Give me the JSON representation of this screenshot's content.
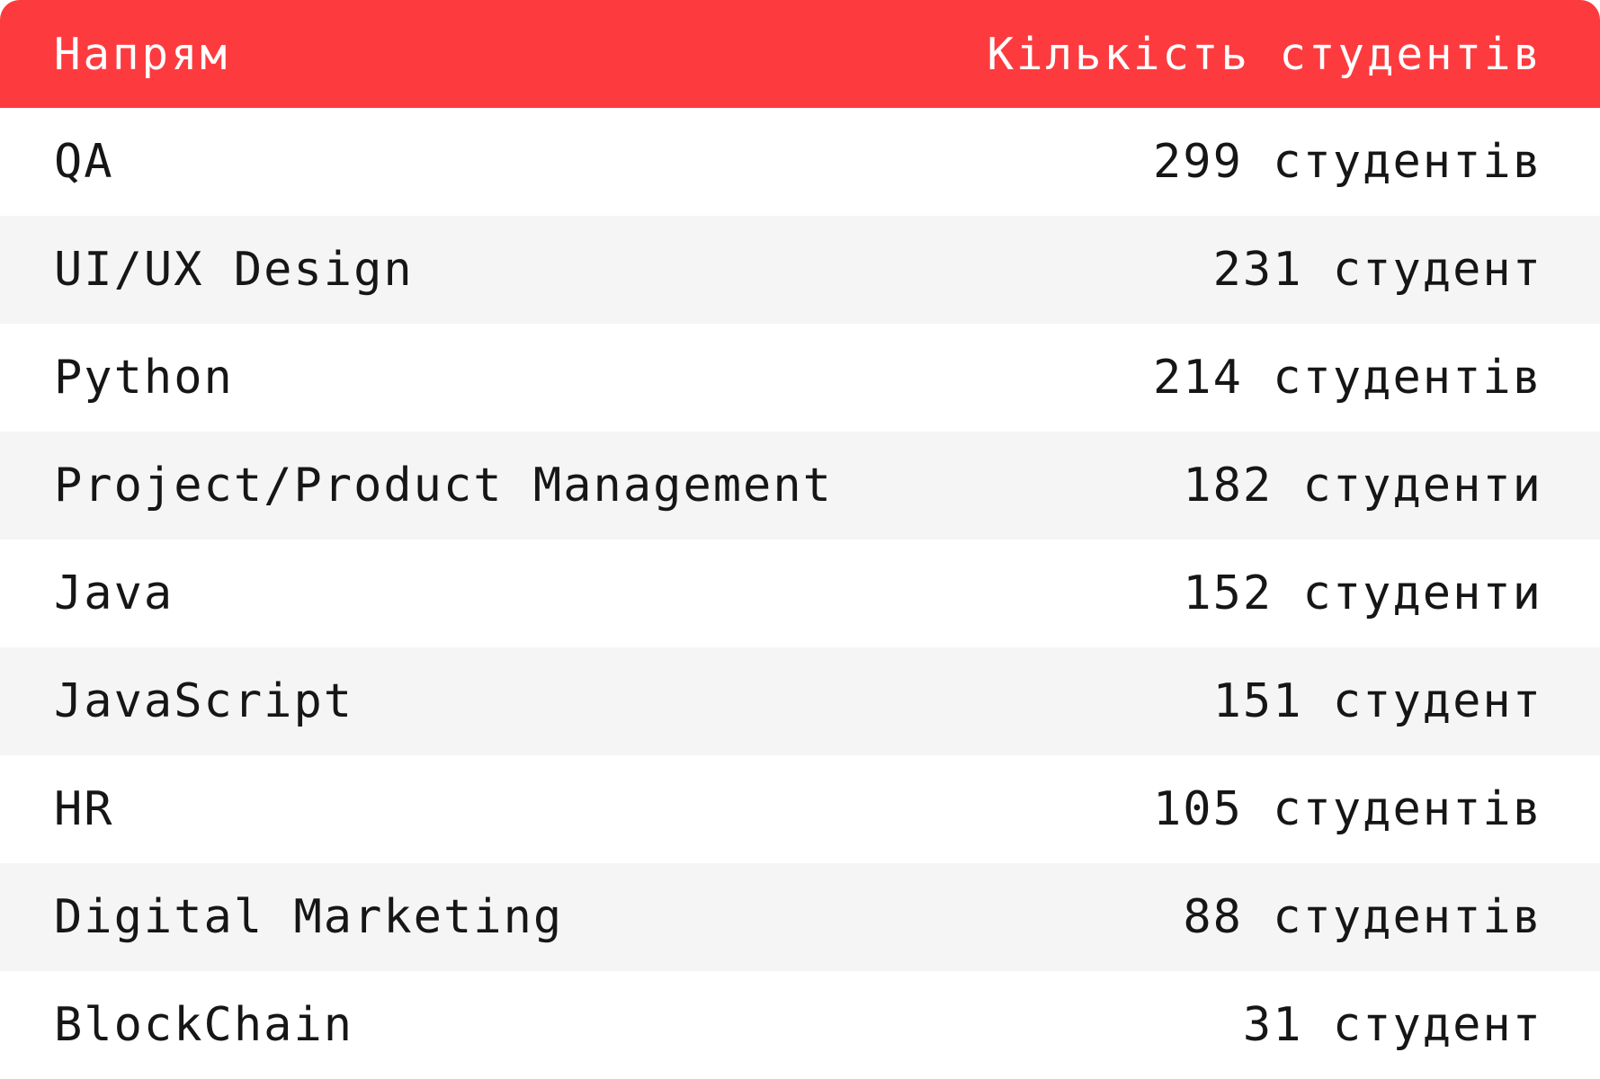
{
  "table": {
    "header": {
      "direction": "Напрям",
      "count": "Кількість студентів"
    },
    "rows": [
      {
        "direction": "QA",
        "count": "299 студентів"
      },
      {
        "direction": "UI/UX Design",
        "count": "231 студент"
      },
      {
        "direction": "Python",
        "count": "214 студентів"
      },
      {
        "direction": "Project/Product Management",
        "count": "182 студенти"
      },
      {
        "direction": "Java",
        "count": "152 студенти"
      },
      {
        "direction": "JavaScript",
        "count": "151 студент"
      },
      {
        "direction": "HR",
        "count": "105 студентів"
      },
      {
        "direction": "Digital Marketing",
        "count": "88 студентів"
      },
      {
        "direction": "BlockChain",
        "count": "31 студент"
      }
    ]
  },
  "colors": {
    "header_bg": "#fd3b3f",
    "header_text": "#ffffff",
    "row_alt_bg": "#f5f5f5",
    "row_bg": "#ffffff",
    "body_text": "#161616"
  }
}
